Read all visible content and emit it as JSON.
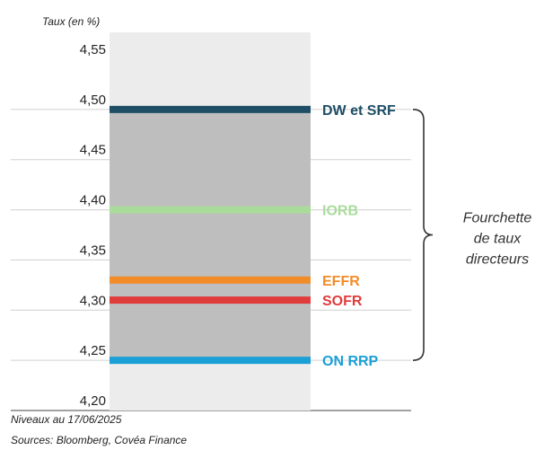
{
  "chart_data": {
    "type": "bar",
    "title": "",
    "ylabel": "Taux (en %)",
    "ylim": [
      4.2,
      4.55
    ],
    "yticks": [
      "4,55",
      "4,50",
      "4,45",
      "4,40",
      "4,35",
      "4,30",
      "4,25",
      "4,20"
    ],
    "ytick_values": [
      4.55,
      4.5,
      4.45,
      4.4,
      4.35,
      4.3,
      4.25,
      4.2
    ],
    "grid": true,
    "range_band": {
      "low": 4.25,
      "high": 4.5,
      "color": "#bebebe",
      "background": "#ececec"
    },
    "series": [
      {
        "name": "DW et SRF",
        "value": 4.5,
        "color": "#1d4e66"
      },
      {
        "name": "IORB",
        "value": 4.4,
        "color": "#a9dc9a"
      },
      {
        "name": "EFFR",
        "value": 4.33,
        "color": "#f28c28"
      },
      {
        "name": "SOFR",
        "value": 4.31,
        "color": "#e03c3c"
      },
      {
        "name": "ON RRP",
        "value": 4.25,
        "color": "#1a9fd6"
      }
    ],
    "brace_label": [
      "Fourchette",
      "de taux",
      "directeurs"
    ]
  },
  "footer": {
    "date_note": "Niveaux au 17/06/2025",
    "sources": "Sources: Bloomberg, Covéa Finance"
  }
}
